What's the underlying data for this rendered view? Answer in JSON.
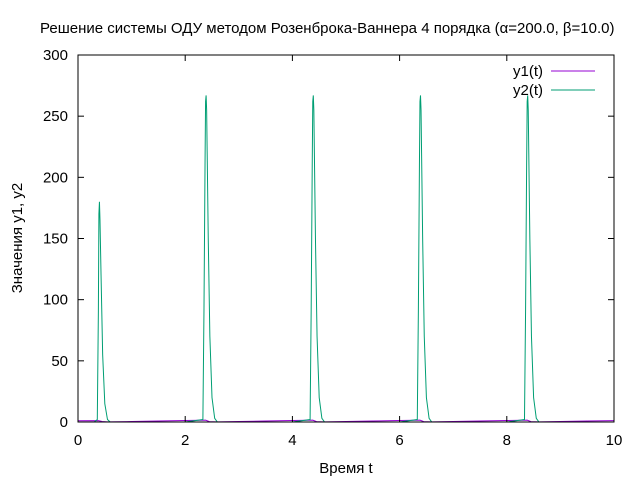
{
  "chart_data": {
    "type": "line",
    "title": "Решение системы ОДУ методом Розенброка-Ваннера 4 порядка (α=200.0, β=10.0)",
    "xlabel": "Время t",
    "ylabel": "Значения y1, y2",
    "xlim": [
      0,
      10
    ],
    "ylim": [
      0,
      300
    ],
    "x_ticks": [
      0,
      2,
      4,
      6,
      8,
      10
    ],
    "y_ticks": [
      0,
      50,
      100,
      150,
      200,
      250,
      300
    ],
    "x_tick_labels": [
      "0",
      "2",
      "4",
      "6",
      "8",
      "10"
    ],
    "y_tick_labels": [
      "0",
      "50",
      "100",
      "150",
      "200",
      "250",
      "300"
    ],
    "grid": false,
    "legend_position": "top-right",
    "series": [
      {
        "name": "y1(t)",
        "color": "#9400d3",
        "x": [
          0,
          0.38,
          0.45,
          0.55,
          1.0,
          1.5,
          2.0,
          2.3,
          2.38,
          2.45,
          2.6,
          3.0,
          3.5,
          4.0,
          4.3,
          4.38,
          4.45,
          4.6,
          5.0,
          5.5,
          6.0,
          6.3,
          6.38,
          6.45,
          6.6,
          7.0,
          7.5,
          8.0,
          8.3,
          8.38,
          8.45,
          8.6,
          9.0,
          9.5,
          10.0
        ],
        "y": [
          1.0,
          1.1,
          0.4,
          0.1,
          0.4,
          0.8,
          1.2,
          1.4,
          1.5,
          0.3,
          0.1,
          0.4,
          0.8,
          1.2,
          1.4,
          1.5,
          0.3,
          0.1,
          0.4,
          0.8,
          1.2,
          1.4,
          1.5,
          0.3,
          0.1,
          0.4,
          0.8,
          1.2,
          1.4,
          1.5,
          0.3,
          0.1,
          0.4,
          0.8,
          1.1
        ]
      },
      {
        "name": "y2(t)",
        "color": "#009e73",
        "x": [
          0,
          0.3,
          0.36,
          0.38,
          0.39,
          0.4,
          0.41,
          0.43,
          0.46,
          0.5,
          0.55,
          0.6,
          1.0,
          2.0,
          2.33,
          2.35,
          2.37,
          2.38,
          2.39,
          2.4,
          2.41,
          2.43,
          2.46,
          2.5,
          2.55,
          2.6,
          3.0,
          4.0,
          4.33,
          4.35,
          4.37,
          4.38,
          4.39,
          4.4,
          4.41,
          4.43,
          4.46,
          4.5,
          4.55,
          4.6,
          5.0,
          6.0,
          6.33,
          6.35,
          6.37,
          6.38,
          6.39,
          6.4,
          6.41,
          6.43,
          6.46,
          6.5,
          6.55,
          6.6,
          7.0,
          8.0,
          8.33,
          8.35,
          8.37,
          8.38,
          8.39,
          8.4,
          8.41,
          8.43,
          8.46,
          8.5,
          8.55,
          8.6,
          9.0,
          10.0
        ],
        "y": [
          0,
          0,
          2,
          90,
          170,
          180,
          165,
          120,
          55,
          15,
          2,
          0,
          0,
          0,
          2,
          90,
          210,
          262,
          267,
          255,
          220,
          150,
          70,
          20,
          3,
          0,
          0,
          0,
          2,
          90,
          210,
          262,
          267,
          255,
          220,
          150,
          70,
          20,
          3,
          0,
          0,
          0,
          2,
          90,
          210,
          262,
          267,
          255,
          220,
          150,
          70,
          20,
          3,
          0,
          0,
          0,
          2,
          90,
          210,
          262,
          267,
          255,
          220,
          150,
          70,
          20,
          3,
          0,
          0,
          0
        ]
      }
    ]
  }
}
